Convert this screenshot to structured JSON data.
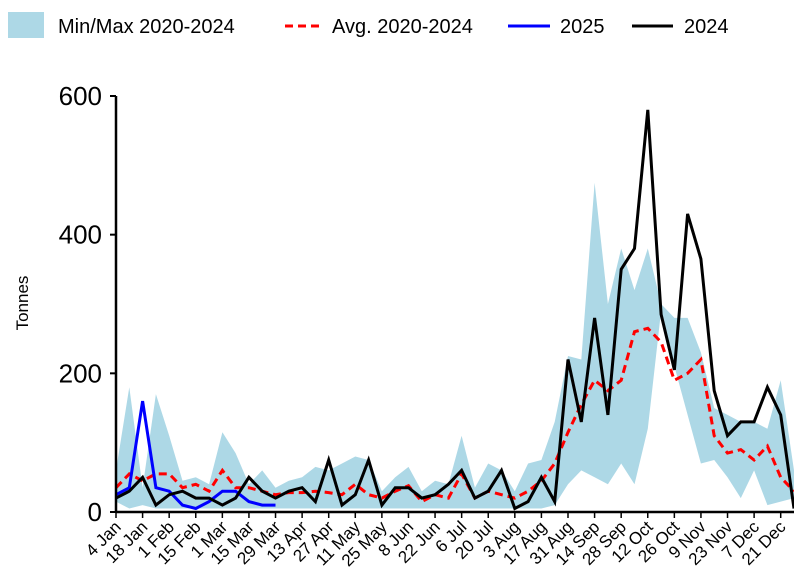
{
  "chart_data": {
    "type": "line",
    "title": "",
    "xlabel": "",
    "ylabel": "Tonnes",
    "ylim": [
      0,
      600
    ],
    "yticks": [
      0,
      200,
      400,
      600
    ],
    "grid": false,
    "legend_position": "top",
    "x": [
      "4 Jan",
      "11 Jan",
      "18 Jan",
      "25 Jan",
      "1 Feb",
      "8 Feb",
      "15 Feb",
      "22 Feb",
      "1 Mar",
      "8 Mar",
      "15 Mar",
      "22 Mar",
      "29 Mar",
      "6 Apr",
      "13 Apr",
      "20 Apr",
      "27 Apr",
      "4 May",
      "11 May",
      "18 May",
      "25 May",
      "1 Jun",
      "8 Jun",
      "15 Jun",
      "22 Jun",
      "29 Jun",
      "6 Jul",
      "13 Jul",
      "20 Jul",
      "27 Jul",
      "3 Aug",
      "10 Aug",
      "17 Aug",
      "24 Aug",
      "31 Aug",
      "7 Sep",
      "14 Sep",
      "21 Sep",
      "28 Sep",
      "5 Oct",
      "12 Oct",
      "19 Oct",
      "26 Oct",
      "2 Nov",
      "9 Nov",
      "16 Nov",
      "23 Nov",
      "30 Nov",
      "7 Dec",
      "14 Dec",
      "21 Dec",
      "28 Dec"
    ],
    "x_tick_labels": [
      "4 Jan",
      "18 Jan",
      "1 Feb",
      "15 Feb",
      "1 Mar",
      "15 Mar",
      "29 Mar",
      "13 Apr",
      "27 Apr",
      "11 May",
      "25 May",
      "8 Jun",
      "22 Jun",
      "6 Jul",
      "20 Jul",
      "3 Aug",
      "17 Aug",
      "31 Aug",
      "14 Sep",
      "28 Sep",
      "12 Oct",
      "26 Oct",
      "9 Nov",
      "23 Nov",
      "7 Dec",
      "21 Dec"
    ],
    "range_band": {
      "name": "Min/Max 2020-2024",
      "color": "#add8e6",
      "min": [
        15,
        5,
        10,
        5,
        5,
        5,
        5,
        5,
        5,
        5,
        5,
        5,
        5,
        5,
        5,
        5,
        5,
        5,
        5,
        5,
        5,
        5,
        5,
        5,
        5,
        5,
        5,
        5,
        5,
        5,
        5,
        5,
        5,
        10,
        40,
        60,
        50,
        40,
        70,
        40,
        120,
        290,
        210,
        140,
        70,
        75,
        50,
        20,
        60,
        10,
        15,
        20
      ],
      "max": [
        60,
        180,
        35,
        170,
        110,
        45,
        50,
        40,
        115,
        85,
        40,
        60,
        35,
        45,
        50,
        65,
        60,
        70,
        80,
        75,
        30,
        50,
        65,
        30,
        45,
        40,
        110,
        35,
        70,
        60,
        30,
        70,
        75,
        130,
        225,
        220,
        475,
        300,
        380,
        320,
        380,
        300,
        280,
        280,
        230,
        150,
        140,
        130,
        130,
        120,
        190,
        60
      ]
    },
    "series": [
      {
        "name": "Avg. 2020-2024",
        "color": "#ff0000",
        "dash": true,
        "values": [
          35,
          55,
          45,
          55,
          55,
          35,
          40,
          30,
          60,
          35,
          35,
          30,
          25,
          28,
          28,
          30,
          28,
          25,
          40,
          25,
          20,
          30,
          38,
          15,
          25,
          20,
          55,
          20,
          30,
          25,
          20,
          30,
          45,
          70,
          115,
          155,
          190,
          175,
          190,
          260,
          265,
          245,
          190,
          200,
          220,
          110,
          85,
          90,
          75,
          95,
          50,
          30
        ]
      },
      {
        "name": "2025",
        "color": "#0000ff",
        "dash": false,
        "values": [
          25,
          35,
          160,
          35,
          30,
          10,
          5,
          15,
          30,
          30,
          15,
          10,
          10,
          null,
          null,
          null,
          null,
          null,
          null,
          null,
          null,
          null,
          null,
          null,
          null,
          null,
          null,
          null,
          null,
          null,
          null,
          null,
          null,
          null,
          null,
          null,
          null,
          null,
          null,
          null,
          null,
          null,
          null,
          null,
          null,
          null,
          null,
          null,
          null,
          null,
          null,
          null
        ]
      },
      {
        "name": "2024",
        "color": "#000000",
        "dash": false,
        "values": [
          20,
          30,
          50,
          10,
          25,
          30,
          20,
          20,
          10,
          20,
          50,
          30,
          20,
          30,
          35,
          15,
          75,
          10,
          25,
          75,
          10,
          35,
          35,
          20,
          25,
          40,
          60,
          20,
          30,
          60,
          5,
          15,
          50,
          15,
          220,
          130,
          280,
          140,
          350,
          380,
          580,
          285,
          205,
          430,
          365,
          175,
          110,
          130,
          130,
          180,
          140,
          5
        ]
      }
    ]
  }
}
